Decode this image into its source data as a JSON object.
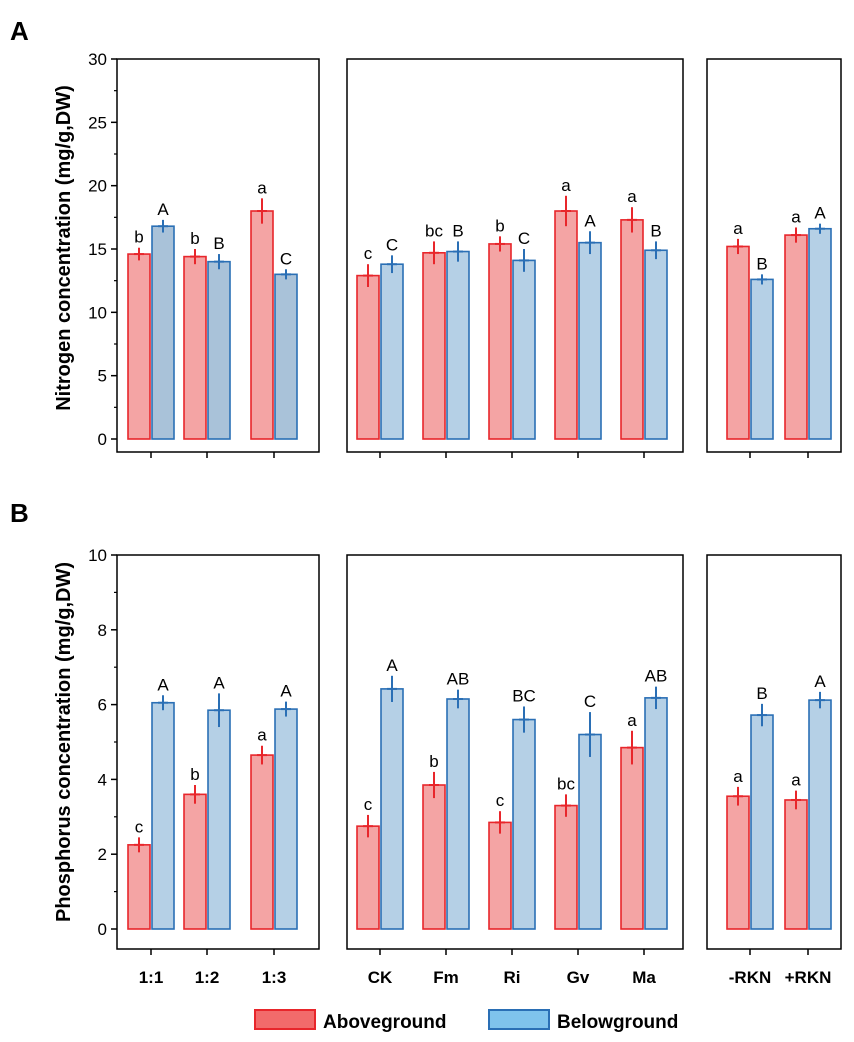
{
  "colors": {
    "above_fill": "#f4a4a4",
    "above_stroke": "#e8262b",
    "below_fill": "#b5d0e6",
    "below_stroke": "#2a6fb5",
    "below_fill_dark": "#a9c2d9"
  },
  "legend": {
    "aboveground": "Aboveground",
    "belowground": "Belowground"
  },
  "chart_data": [
    {
      "panel_label": "A",
      "type": "bar",
      "ylabel": "Nitrogen concentration (mg/g,DW)",
      "ylim": [
        0,
        30
      ],
      "yticks": [
        0,
        5,
        10,
        15,
        20,
        25,
        30
      ],
      "groups": [
        {
          "categories": [
            "1:1",
            "1:2",
            "1:3"
          ],
          "above": [
            14.6,
            14.4,
            18.0
          ],
          "above_err": [
            0.5,
            0.6,
            1.0
          ],
          "below": [
            16.8,
            14.0,
            13.0
          ],
          "below_err": [
            0.5,
            0.6,
            0.4
          ],
          "above_sig": [
            "b",
            "b",
            "a"
          ],
          "below_sig": [
            "A",
            "B",
            "C"
          ]
        },
        {
          "categories": [
            "CK",
            "Fm",
            "Ri",
            "Gv",
            "Ma"
          ],
          "above": [
            12.9,
            14.7,
            15.4,
            18.0,
            17.3
          ],
          "above_err": [
            0.9,
            0.9,
            0.6,
            1.2,
            1.0
          ],
          "below": [
            13.8,
            14.8,
            14.1,
            15.5,
            14.9
          ],
          "below_err": [
            0.7,
            0.8,
            0.9,
            0.9,
            0.7
          ],
          "above_sig": [
            "c",
            "bc",
            "b",
            "a",
            "a"
          ],
          "below_sig": [
            "C",
            "B",
            "C",
            "A",
            "B"
          ]
        },
        {
          "categories": [
            "-RKN",
            "+RKN"
          ],
          "above": [
            15.2,
            16.1
          ],
          "above_err": [
            0.6,
            0.6
          ],
          "below": [
            12.6,
            16.6
          ],
          "below_err": [
            0.4,
            0.4
          ],
          "above_sig": [
            "a",
            "a"
          ],
          "below_sig": [
            "B",
            "A"
          ]
        }
      ]
    },
    {
      "panel_label": "B",
      "type": "bar",
      "ylabel": "Phosphorus concentration (mg/g,DW)",
      "ylim": [
        0,
        10
      ],
      "yticks": [
        0,
        2,
        4,
        6,
        8,
        10
      ],
      "groups": [
        {
          "categories": [
            "1:1",
            "1:2",
            "1:3"
          ],
          "above": [
            2.25,
            3.6,
            4.65
          ],
          "above_err": [
            0.2,
            0.25,
            0.25
          ],
          "below": [
            6.05,
            5.85,
            5.88
          ],
          "below_err": [
            0.2,
            0.45,
            0.2
          ],
          "above_sig": [
            "c",
            "b",
            "a"
          ],
          "below_sig": [
            "A",
            "A",
            "A"
          ]
        },
        {
          "categories": [
            "CK",
            "Fm",
            "Ri",
            "Gv",
            "Ma"
          ],
          "above": [
            2.75,
            3.85,
            2.85,
            3.3,
            4.85
          ],
          "above_err": [
            0.3,
            0.35,
            0.3,
            0.3,
            0.45
          ],
          "below": [
            6.42,
            6.15,
            5.6,
            5.2,
            6.18
          ],
          "below_err": [
            0.35,
            0.25,
            0.35,
            0.6,
            0.3
          ],
          "above_sig": [
            "c",
            "b",
            "c",
            "bc",
            "a"
          ],
          "below_sig": [
            "A",
            "AB",
            "BC",
            "C",
            "AB"
          ]
        },
        {
          "categories": [
            "-RKN",
            "+RKN"
          ],
          "above": [
            3.55,
            3.45
          ],
          "above_err": [
            0.25,
            0.25
          ],
          "below": [
            5.72,
            6.12
          ],
          "below_err": [
            0.3,
            0.22
          ],
          "above_sig": [
            "a",
            "a"
          ],
          "below_sig": [
            "B",
            "A"
          ]
        }
      ]
    }
  ]
}
